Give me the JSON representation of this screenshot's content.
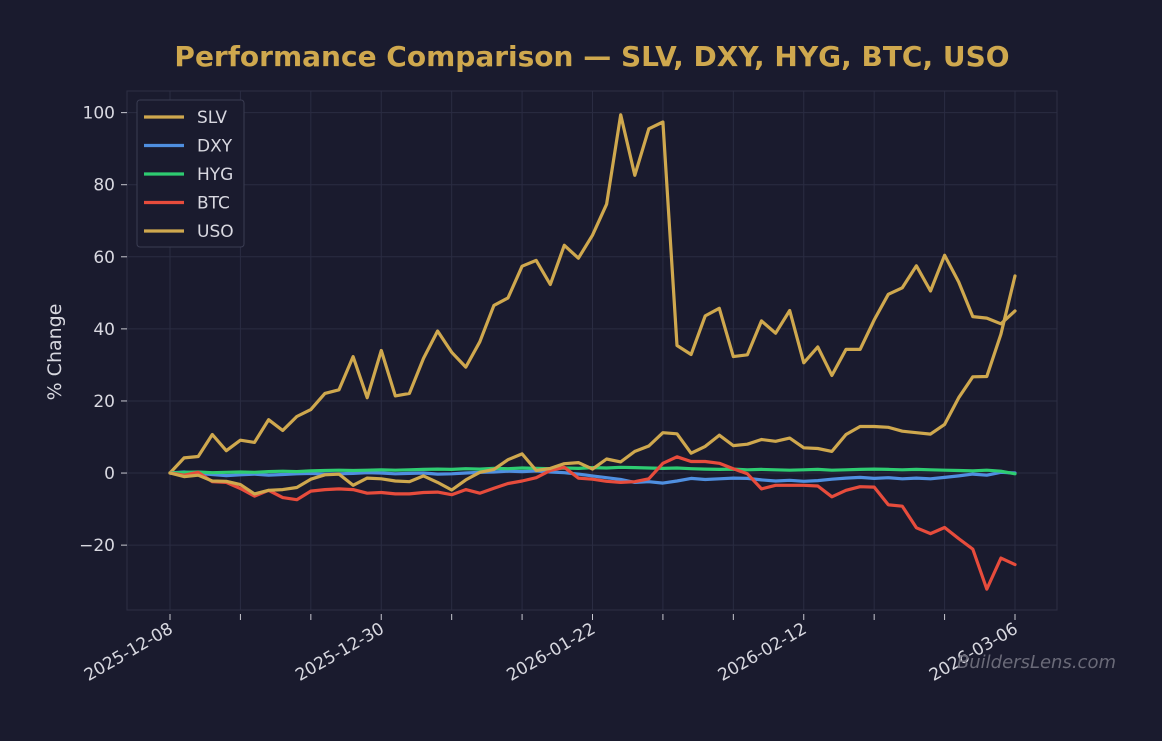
{
  "chart_data": {
    "type": "line",
    "title": "Performance Comparison — SLV, DXY, HYG, BTC, USO",
    "xlabel": "",
    "ylabel": "% Change",
    "x_start": "2025-12-08",
    "x_end": "2026-03-06",
    "xtick_labels": [
      "2025-12-08",
      "2025-12-30",
      "2026-01-22",
      "2026-02-12",
      "2026-03-06"
    ],
    "ylim": [
      -38,
      106
    ],
    "yticks": [
      -20,
      0,
      20,
      40,
      60,
      80,
      100
    ],
    "ytick_labels": [
      "−20",
      "0",
      "20",
      "40",
      "60",
      "80",
      "100"
    ],
    "grid": true,
    "legend_position": "upper-left",
    "watermark": "BuildersLens.com",
    "background_color": "#1a1b2e",
    "series": [
      {
        "name": "SLV",
        "color": "#cfa84e",
        "values": [
          0,
          4.2,
          4.6,
          10.7,
          6.2,
          9.1,
          8.5,
          14.8,
          11.8,
          15.7,
          17.6,
          22.1,
          23.1,
          32.3,
          20.9,
          34.0,
          21.4,
          22.1,
          31.8,
          39.4,
          33.5,
          29.4,
          36.4,
          46.5,
          48.6,
          57.4,
          59.0,
          52.3,
          63.2,
          59.6,
          66.0,
          74.6,
          99.4,
          82.6,
          95.5,
          97.4,
          35.4,
          32.9,
          43.6,
          45.7,
          32.3,
          32.8,
          42.2,
          38.8,
          45.1,
          30.6,
          35.0,
          27.1,
          34.3,
          34.3,
          42.5,
          49.6,
          51.4,
          57.5,
          50.5,
          60.4,
          53.0,
          43.4,
          43.0,
          41.4,
          45.0
        ]
      },
      {
        "name": "DXY",
        "color": "#4f8fe0",
        "values": [
          0,
          0.3,
          -0.1,
          -0.4,
          -0.7,
          -0.5,
          -0.3,
          -0.6,
          -0.4,
          -0.2,
          -0.1,
          -0.3,
          -0.2,
          -0.1,
          0.1,
          0.0,
          -0.2,
          -0.1,
          0.0,
          -0.3,
          -0.2,
          0.0,
          0.2,
          0.3,
          0.5,
          0.4,
          0.6,
          0.3,
          0.1,
          -0.3,
          -0.8,
          -1.3,
          -1.8,
          -2.6,
          -2.4,
          -2.8,
          -2.2,
          -1.5,
          -1.8,
          -1.6,
          -1.4,
          -1.5,
          -1.9,
          -2.2,
          -2.0,
          -2.3,
          -2.1,
          -1.7,
          -1.4,
          -1.2,
          -1.5,
          -1.3,
          -1.6,
          -1.4,
          -1.6,
          -1.2,
          -0.8,
          -0.3,
          -0.6,
          0.2,
          0.0
        ]
      },
      {
        "name": "HYG",
        "color": "#2ecc71",
        "values": [
          0,
          0.2,
          0.3,
          0.1,
          0.2,
          0.3,
          0.2,
          0.4,
          0.5,
          0.4,
          0.6,
          0.7,
          0.8,
          0.7,
          0.8,
          0.9,
          0.8,
          0.9,
          1.0,
          1.1,
          1.0,
          1.2,
          1.1,
          1.3,
          1.2,
          1.4,
          1.3,
          1.2,
          1.4,
          1.3,
          1.5,
          1.4,
          1.6,
          1.5,
          1.4,
          1.3,
          1.4,
          1.2,
          1.1,
          1.0,
          1.1,
          0.9,
          1.0,
          0.9,
          0.8,
          0.9,
          1.0,
          0.8,
          0.9,
          1.0,
          1.1,
          1.0,
          0.9,
          1.0,
          0.9,
          0.8,
          0.7,
          0.6,
          0.8,
          0.5,
          -0.2
        ]
      },
      {
        "name": "BTC",
        "color": "#e74c3c",
        "values": [
          0,
          -0.6,
          0.2,
          -2.4,
          -2.6,
          -4.3,
          -6.4,
          -4.8,
          -6.8,
          -7.4,
          -5.0,
          -4.6,
          -4.4,
          -4.6,
          -5.6,
          -5.4,
          -5.8,
          -5.8,
          -5.4,
          -5.3,
          -6.0,
          -4.6,
          -5.6,
          -4.2,
          -2.9,
          -2.2,
          -1.3,
          0.7,
          1.6,
          -1.4,
          -1.7,
          -2.3,
          -2.6,
          -2.4,
          -1.6,
          2.7,
          4.5,
          3.2,
          3.2,
          2.7,
          1.2,
          -0.2,
          -4.4,
          -3.4,
          -3.4,
          -3.4,
          -3.6,
          -6.6,
          -4.8,
          -3.8,
          -3.9,
          -8.8,
          -9.2,
          -15.2,
          -16.8,
          -15.1,
          -18.2,
          -21.1,
          -32.2,
          -23.6,
          -25.4
        ]
      },
      {
        "name": "USO",
        "color": "#cfa84e",
        "values": [
          0,
          -1.0,
          -0.6,
          -2.2,
          -2.3,
          -3.2,
          -5.8,
          -4.8,
          -4.6,
          -4.0,
          -1.7,
          -0.5,
          -0.3,
          -3.4,
          -1.4,
          -1.6,
          -2.2,
          -2.4,
          -0.8,
          -2.6,
          -4.7,
          -1.9,
          0.2,
          1.0,
          3.7,
          5.3,
          0.7,
          1.3,
          2.6,
          2.9,
          1.1,
          3.9,
          3.1,
          6.0,
          7.5,
          11.2,
          10.9,
          5.5,
          7.4,
          10.5,
          7.6,
          8.0,
          9.3,
          8.8,
          9.7,
          7.0,
          6.8,
          6.0,
          10.7,
          12.9,
          12.9,
          12.7,
          11.6,
          11.2,
          10.8,
          13.5,
          20.9,
          26.7,
          26.8,
          38.5,
          54.7
        ]
      }
    ]
  }
}
